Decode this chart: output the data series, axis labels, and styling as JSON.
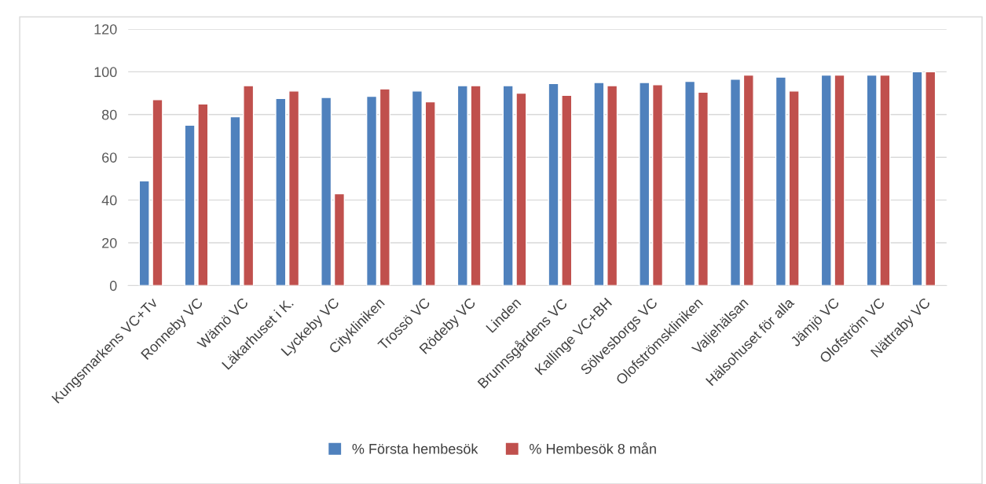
{
  "chart_data": {
    "type": "bar",
    "categories": [
      "Kungsmarkens VC+Tv",
      "Ronneby VC",
      "Wämö VC",
      "Läkarhuset i K.",
      "Lyckeby VC",
      "Citykliniken",
      "Trossö VC",
      "Rödeby VC",
      "Linden",
      "Brunnsgårdens VC",
      "Kallinge VC+BH",
      "Sölvesborgs VC",
      "Olofströmskliniken",
      "Valjehälsan",
      "Hälsohuset för alla",
      "Jämjö VC",
      "Olofström VC",
      "Nättraby VC"
    ],
    "series": [
      {
        "name": "% Första hembesök",
        "color": "#4f81bd",
        "values": [
          49,
          75,
          79,
          87.5,
          88,
          88.5,
          91,
          93.5,
          93.5,
          94.5,
          95,
          95,
          95.5,
          96.5,
          97.5,
          98.5,
          98.5,
          100
        ]
      },
      {
        "name": "% Hembesök 8 mån",
        "color": "#c0504d",
        "values": [
          87,
          85,
          93.5,
          91,
          43,
          92,
          86,
          93.5,
          90,
          89,
          93.5,
          94,
          90.5,
          98.5,
          91,
          98.5,
          98.5,
          100
        ]
      }
    ],
    "ylim": [
      0,
      120
    ],
    "yticks": [
      0,
      20,
      40,
      60,
      80,
      100,
      120
    ],
    "grid": "y",
    "legend": "bottom"
  }
}
